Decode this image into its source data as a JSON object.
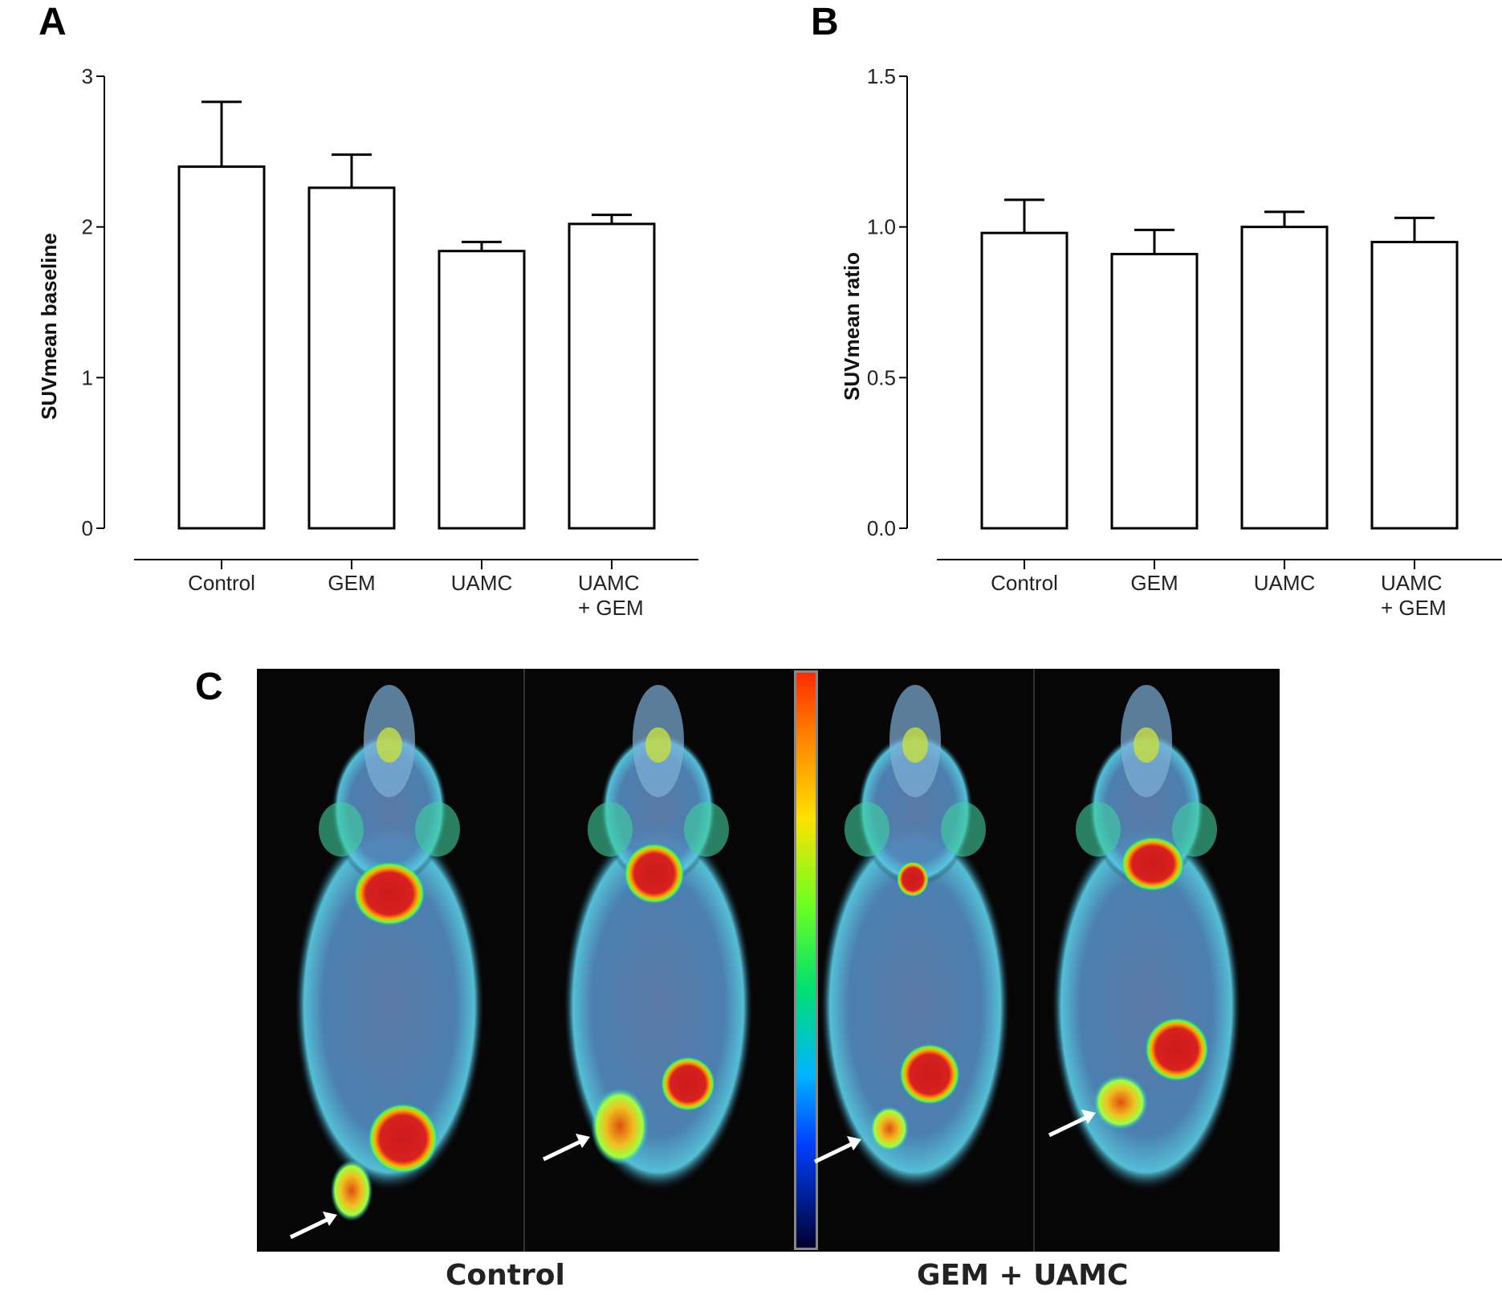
{
  "panels": {
    "a": {
      "letter": "A"
    },
    "b": {
      "letter": "B"
    },
    "c": {
      "letter": "C",
      "captions": [
        "Control",
        "GEM + UAMC"
      ]
    }
  },
  "chart_data": [
    {
      "type": "bar",
      "panel": "A",
      "categories": [
        [
          "Control"
        ],
        [
          "GEM"
        ],
        [
          "UAMC"
        ],
        [
          "UAMC",
          "+ GEM"
        ]
      ],
      "values": [
        2.4,
        2.26,
        1.84,
        2.02
      ],
      "error": [
        0.43,
        0.22,
        0.06,
        0.06
      ],
      "ylabel": "SUVmean baseline",
      "ylim": [
        0,
        3
      ],
      "yticks": [
        0,
        1,
        2,
        3
      ],
      "ytick_labels": [
        "0",
        "1",
        "2",
        "3"
      ],
      "colors": {
        "bar_fill": "#ffffff",
        "bar_stroke": "#000000"
      }
    },
    {
      "type": "bar",
      "panel": "B",
      "categories": [
        [
          "Control"
        ],
        [
          "GEM"
        ],
        [
          "UAMC"
        ],
        [
          "UAMC",
          "+ GEM"
        ]
      ],
      "values": [
        0.98,
        0.91,
        1.0,
        0.95
      ],
      "error": [
        0.11,
        0.08,
        0.05,
        0.08
      ],
      "ylabel": "SUVmean ratio",
      "ylim": [
        0,
        1.5
      ],
      "yticks": [
        0,
        0.5,
        1.0,
        1.5
      ],
      "ytick_labels": [
        "0.0",
        "0.5",
        "1.0",
        "1.5"
      ],
      "colors": {
        "bar_fill": "#ffffff",
        "bar_stroke": "#000000"
      }
    }
  ],
  "image_c": {
    "description_kind": "PET/CT maximum intensity projection images of four mice with rainbow color scale",
    "colorscale": [
      "#000080",
      "#0000ff",
      "#00c8ff",
      "#00ff80",
      "#c8ff00",
      "#ffd000",
      "#ff6000",
      "#ff0000"
    ]
  }
}
